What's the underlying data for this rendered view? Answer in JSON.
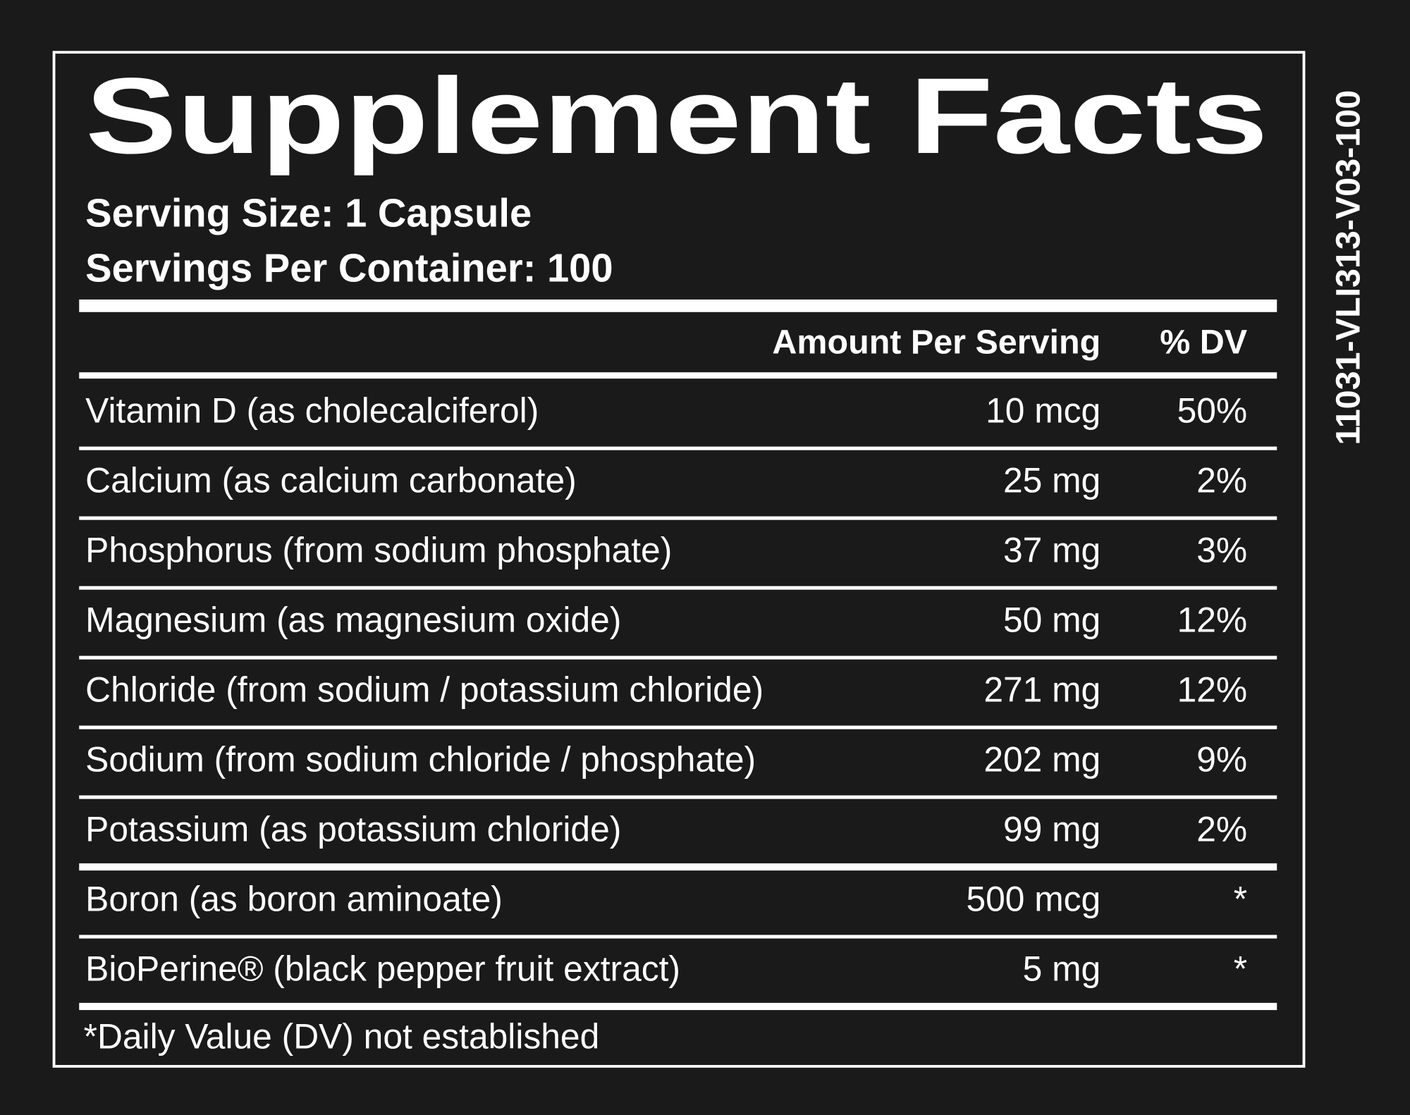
{
  "header": {
    "title": "Supplement Facts",
    "serving_size": "Serving Size: 1 Capsule",
    "servings_per_container": "Servings Per Container: 100"
  },
  "table": {
    "columns": [
      "Amount Per Serving",
      "% DV"
    ],
    "rows": [
      [
        "Vitamin D (as cholecalciferol)",
        "10 mcg",
        "50%"
      ],
      [
        "Calcium (as calcium carbonate)",
        "25 mg",
        "2%"
      ],
      [
        "Phosphorus (from sodium phosphate)",
        "37 mg",
        "3%"
      ],
      [
        "Magnesium (as magnesium oxide)",
        "50 mg",
        "12%"
      ],
      [
        "Chloride (from sodium / potassium chloride)",
        "271 mg",
        "12%"
      ],
      [
        "Sodium (from sodium chloride / phosphate)",
        "202 mg",
        "9%"
      ],
      [
        "Potassium (as potassium chloride)",
        "99 mg",
        "2%"
      ],
      [
        "Boron (as boron aminoate)",
        "500 mcg",
        "*"
      ],
      [
        "BioPerine® (black pepper fruit extract)",
        "5 mg",
        "*"
      ]
    ]
  },
  "footnote": "*Daily Value (DV) not established",
  "code": "11031-VLI313-V03-100"
}
